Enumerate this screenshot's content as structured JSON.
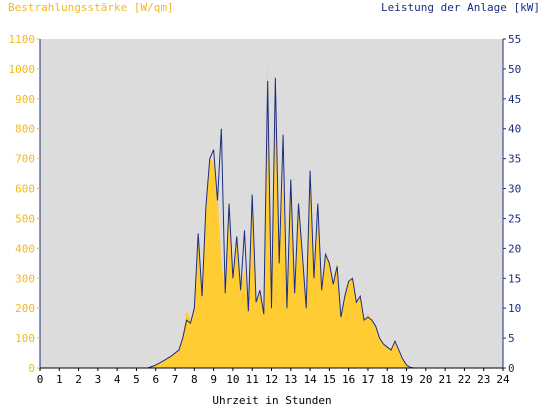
{
  "chart_data": {
    "type": "area",
    "ylabel_left": "Bestrahlungsstärke [W/qm]",
    "ylabel_right": "Leistung der Anlage [kW]",
    "xlabel": "Uhrzeit in Stunden",
    "xlim": [
      0,
      24
    ],
    "ylim_left": [
      0,
      1100
    ],
    "ylim_right": [
      0,
      55
    ],
    "x_ticks": [
      0,
      1,
      2,
      3,
      4,
      5,
      6,
      7,
      8,
      9,
      10,
      11,
      12,
      13,
      14,
      15,
      16,
      17,
      18,
      19,
      20,
      21,
      22,
      23,
      24
    ],
    "y_ticks_left": [
      0,
      100,
      200,
      300,
      400,
      500,
      600,
      700,
      800,
      900,
      1000,
      1100
    ],
    "y_ticks_right": [
      0,
      5,
      10,
      15,
      20,
      25,
      30,
      35,
      40,
      45,
      50,
      55
    ],
    "grid": false,
    "colors": {
      "background": "#dcdcdc",
      "irradiance_fill": "#ffcc33",
      "power_line": "#1c2d80",
      "left_axis": "#f2b91c",
      "right_axis": "#1c2d80"
    },
    "series": [
      {
        "axis": "left",
        "style": "filled-area",
        "x": [
          0,
          5.6,
          6.0,
          6.4,
          6.8,
          7.2,
          7.4,
          7.6,
          7.8,
          8.0,
          8.2,
          8.4,
          8.6,
          8.8,
          9.0,
          9.2,
          9.4,
          9.6,
          9.8,
          10.0,
          10.2,
          10.4,
          10.6,
          10.8,
          11.0,
          11.2,
          11.4,
          11.6,
          11.8,
          12.0,
          12.2,
          12.4,
          12.6,
          12.8,
          13.0,
          13.2,
          13.4,
          13.6,
          13.8,
          14.0,
          14.2,
          14.4,
          14.6,
          14.8,
          15.0,
          15.2,
          15.4,
          15.6,
          15.8,
          16.0,
          16.2,
          16.4,
          16.6,
          16.8,
          17.0,
          17.2,
          17.4,
          17.6,
          17.8,
          18.0,
          18.2,
          18.4,
          18.6,
          18.8,
          19.0,
          19.2,
          19.4,
          20.0,
          24
        ],
        "values": [
          0,
          0,
          10,
          25,
          40,
          60,
          110,
          190,
          160,
          200,
          430,
          240,
          560,
          700,
          690,
          580,
          360,
          250,
          550,
          300,
          430,
          260,
          330,
          190,
          580,
          220,
          260,
          180,
          1040,
          200,
          990,
          350,
          630,
          200,
          590,
          250,
          560,
          380,
          210,
          620,
          300,
          500,
          260,
          380,
          350,
          280,
          360,
          170,
          250,
          290,
          300,
          220,
          240,
          160,
          180,
          160,
          140,
          100,
          80,
          70,
          60,
          90,
          60,
          30,
          10,
          3,
          0,
          0,
          0
        ]
      },
      {
        "axis": "right",
        "style": "line",
        "x": [
          0,
          5.6,
          6.0,
          6.4,
          6.8,
          7.2,
          7.4,
          7.6,
          7.8,
          8.0,
          8.2,
          8.4,
          8.6,
          8.8,
          9.0,
          9.2,
          9.4,
          9.6,
          9.8,
          10.0,
          10.2,
          10.4,
          10.6,
          10.8,
          11.0,
          11.2,
          11.4,
          11.6,
          11.8,
          12.0,
          12.2,
          12.4,
          12.6,
          12.8,
          13.0,
          13.2,
          13.4,
          13.6,
          13.8,
          14.0,
          14.2,
          14.4,
          14.6,
          14.8,
          15.0,
          15.2,
          15.4,
          15.6,
          15.8,
          16.0,
          16.2,
          16.4,
          16.6,
          16.8,
          17.0,
          17.2,
          17.4,
          17.6,
          17.8,
          18.0,
          18.2,
          18.4,
          18.6,
          18.8,
          19.0,
          19.2,
          19.4,
          20.0,
          24
        ],
        "values": [
          0,
          0,
          0.5,
          1.2,
          2,
          3,
          5,
          8,
          7.5,
          10,
          22.5,
          12,
          27,
          35,
          36.5,
          28,
          40,
          12.5,
          27.5,
          15,
          22,
          13,
          23,
          9.5,
          29,
          11,
          13,
          9,
          48,
          10,
          48.5,
          17.5,
          39,
          10,
          31.5,
          12.5,
          27.5,
          19,
          10,
          33,
          15,
          27.5,
          13,
          19,
          17.5,
          14,
          17,
          8.5,
          12,
          14.5,
          15,
          11,
          12,
          8,
          8.5,
          8,
          7,
          5,
          4,
          3.5,
          3,
          4.5,
          3,
          1.5,
          0.5,
          0.1,
          0,
          0,
          0
        ]
      }
    ]
  }
}
